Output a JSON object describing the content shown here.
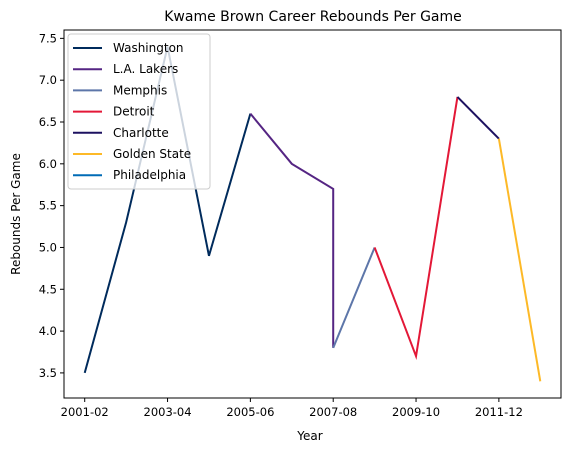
{
  "chart_data": {
    "type": "line",
    "title": "Kwame Brown Career Rebounds Per Game",
    "xlabel": "Year",
    "ylabel": "Rebounds Per Game",
    "x_categories": [
      "2001-02",
      "2002-03",
      "2003-04",
      "2004-05",
      "2005-06",
      "2006-07",
      "2007-08",
      "2008-09",
      "2009-10",
      "2010-11",
      "2011-12",
      "2012-13"
    ],
    "x_tick_labels": [
      "2001-02",
      "2003-04",
      "2005-06",
      "2007-08",
      "2009-10",
      "2011-12"
    ],
    "ylim": [
      3.2,
      7.6
    ],
    "y_ticks": [
      3.5,
      4.0,
      4.5,
      5.0,
      5.5,
      6.0,
      6.5,
      7.0,
      7.5
    ],
    "y_tick_labels": [
      "3.5",
      "4.0",
      "4.5",
      "5.0",
      "5.5",
      "6.0",
      "6.5",
      "7.0",
      "7.5"
    ],
    "grid": false,
    "legend_position": "top-left",
    "series": [
      {
        "name": "Washington",
        "color": "#002B5C",
        "points": [
          [
            "2001-02",
            3.5
          ],
          [
            "2002-03",
            5.3
          ],
          [
            "2003-04",
            7.4
          ],
          [
            "2004-05",
            4.9
          ],
          [
            "2005-06",
            6.6
          ]
        ]
      },
      {
        "name": "L.A. Lakers",
        "color": "#552583",
        "points": [
          [
            "2005-06",
            6.6
          ],
          [
            "2006-07",
            6.0
          ],
          [
            "2007-08",
            5.7
          ],
          [
            "2007-08",
            3.8
          ]
        ]
      },
      {
        "name": "Memphis",
        "color": "#5D76A9",
        "points": [
          [
            "2007-08",
            3.8
          ],
          [
            "2008-09",
            5.0
          ]
        ]
      },
      {
        "name": "Detroit",
        "color": "#E31837",
        "points": [
          [
            "2008-09",
            5.0
          ],
          [
            "2009-10",
            3.7
          ],
          [
            "2010-11",
            6.8
          ]
        ]
      },
      {
        "name": "Charlotte",
        "color": "#1D1160",
        "points": [
          [
            "2010-11",
            6.8
          ],
          [
            "2011-12",
            6.3
          ]
        ]
      },
      {
        "name": "Golden State",
        "color": "#FDB927",
        "points": [
          [
            "2011-12",
            6.3
          ],
          [
            "2012-13",
            3.4
          ]
        ]
      },
      {
        "name": "Philadelphia",
        "color": "#006BB6",
        "points": []
      }
    ]
  }
}
